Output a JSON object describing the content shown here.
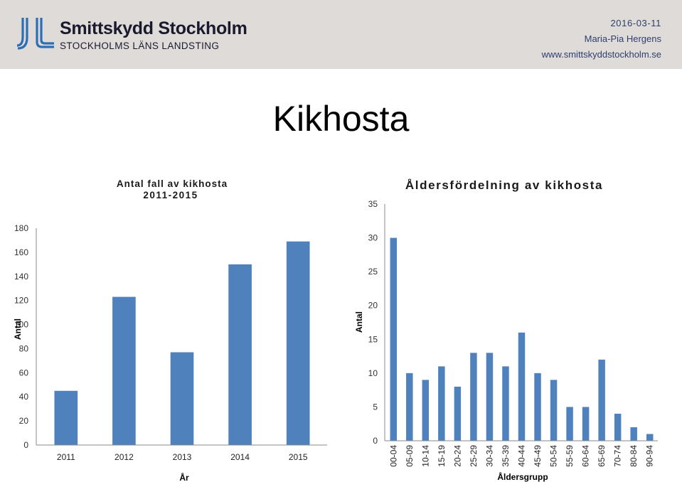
{
  "header": {
    "brand_name": "Smittskydd Stockholm",
    "brand_sub": "STOCKHOLMS LÄNS LANDSTING",
    "date": "2016-03-11",
    "author": "Maria-Pia Hergens",
    "url": "www.smittskyddstockholm.se",
    "colors": {
      "band": "#dedbd9",
      "logo": "#2e6eb5"
    },
    "logo_icon": "jll-logo-icon"
  },
  "page_title": "Kikhosta",
  "chart_data": [
    {
      "type": "bar",
      "title_line1": "Antal fall av kikhosta",
      "title_line2": "2011-2015",
      "xlabel": "År",
      "ylabel": "Antal",
      "categories": [
        "2011",
        "2012",
        "2013",
        "2014",
        "2015"
      ],
      "values": [
        45,
        123,
        77,
        150,
        169
      ],
      "ylim": [
        0,
        180
      ],
      "yticks": [
        "0",
        "20",
        "40",
        "60",
        "80",
        "100",
        "120",
        "140",
        "160",
        "180"
      ],
      "grid": false,
      "bar_color": "#4f81bd"
    },
    {
      "type": "bar",
      "title": "Åldersfördelning av kikhosta",
      "xlabel": "Åldersgrupp",
      "ylabel": "Antal",
      "categories": [
        "00-04",
        "05-09",
        "10-14",
        "15-19",
        "20-24",
        "25-29",
        "30-34",
        "35-39",
        "40-44",
        "45-49",
        "50-54",
        "55-59",
        "60-64",
        "65-69",
        "70-74",
        "80-84",
        "90-94"
      ],
      "values": [
        30,
        10,
        9,
        11,
        8,
        13,
        13,
        11,
        16,
        10,
        9,
        5,
        5,
        12,
        4,
        2,
        1
      ],
      "ylim": [
        0,
        35
      ],
      "yticks": [
        "0",
        "5",
        "10",
        "15",
        "20",
        "25",
        "30",
        "35"
      ],
      "grid": false,
      "bar_color": "#4f81bd"
    }
  ]
}
